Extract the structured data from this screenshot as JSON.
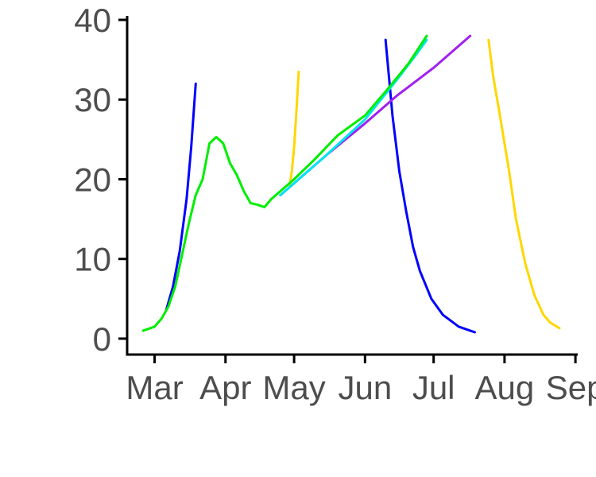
{
  "chart_data": {
    "type": "line",
    "title": "",
    "xlabel": "",
    "ylabel": "",
    "x_ticks": [
      "Mar",
      "Apr",
      "May",
      "Jun",
      "Jul",
      "Aug",
      "Sep"
    ],
    "y_ticks": [
      "0",
      "10",
      "20",
      "30",
      "40"
    ],
    "xlim": [
      "2020-02-18",
      "2020-09-02"
    ],
    "ylim": [
      -2,
      40.5
    ],
    "grid": false,
    "legend": "none",
    "series": [
      {
        "color": "#0000ff",
        "points": [
          [
            "2020-03-06",
            3.5
          ],
          [
            "2020-03-09",
            6.5
          ],
          [
            "2020-03-12",
            11
          ],
          [
            "2020-03-15",
            17.5
          ],
          [
            "2020-03-17",
            24
          ],
          [
            "2020-03-19",
            32
          ]
        ]
      },
      {
        "color": "#0000ff",
        "points": [
          [
            "2020-06-10",
            37.5
          ],
          [
            "2020-06-13",
            28
          ],
          [
            "2020-06-16",
            21
          ],
          [
            "2020-06-19",
            16
          ],
          [
            "2020-06-22",
            11.5
          ],
          [
            "2020-06-25",
            8.5
          ],
          [
            "2020-06-30",
            5
          ],
          [
            "2020-07-05",
            3
          ],
          [
            "2020-07-12",
            1.5
          ],
          [
            "2020-07-19",
            0.8
          ]
        ]
      },
      {
        "color": "#ffd700",
        "points": [
          [
            "2020-04-29",
            19
          ],
          [
            "2020-04-30",
            21
          ],
          [
            "2020-05-01",
            24
          ],
          [
            "2020-05-02",
            28.5
          ],
          [
            "2020-05-03",
            33.5
          ]
        ]
      },
      {
        "color": "#ffd700",
        "points": [
          [
            "2020-07-25",
            37.5
          ],
          [
            "2020-07-27",
            33
          ],
          [
            "2020-07-30",
            28
          ],
          [
            "2020-08-03",
            21
          ],
          [
            "2020-08-06",
            15
          ],
          [
            "2020-08-10",
            9.5
          ],
          [
            "2020-08-14",
            5.5
          ],
          [
            "2020-08-18",
            3
          ],
          [
            "2020-08-21",
            2
          ],
          [
            "2020-08-25",
            1.3
          ]
        ]
      },
      {
        "color": "#a020f0",
        "points": [
          [
            "2020-04-25",
            18
          ],
          [
            "2020-05-01",
            19.5
          ],
          [
            "2020-05-15",
            23
          ],
          [
            "2020-06-01",
            27
          ],
          [
            "2020-06-15",
            30.5
          ],
          [
            "2020-07-01",
            34
          ],
          [
            "2020-07-15",
            37.5
          ],
          [
            "2020-07-17",
            38
          ]
        ]
      },
      {
        "color": "#00e5ee",
        "points": [
          [
            "2020-04-25",
            18
          ],
          [
            "2020-05-01",
            19.5
          ],
          [
            "2020-05-15",
            23
          ],
          [
            "2020-06-01",
            27.5
          ],
          [
            "2020-06-15",
            32.5
          ],
          [
            "2020-06-23",
            35.5
          ],
          [
            "2020-06-28",
            37.5
          ]
        ]
      },
      {
        "color": "#00ee00",
        "points": [
          [
            "2020-02-25",
            1
          ],
          [
            "2020-03-01",
            1.5
          ],
          [
            "2020-03-04",
            2.5
          ],
          [
            "2020-03-07",
            4
          ],
          [
            "2020-03-10",
            6.5
          ],
          [
            "2020-03-13",
            10.5
          ],
          [
            "2020-03-16",
            14.5
          ],
          [
            "2020-03-19",
            18
          ],
          [
            "2020-03-22",
            20
          ],
          [
            "2020-03-25",
            24.5
          ],
          [
            "2020-03-28",
            25.3
          ],
          [
            "2020-03-31",
            24.5
          ],
          [
            "2020-04-03",
            22
          ],
          [
            "2020-04-06",
            20.5
          ],
          [
            "2020-04-09",
            18.5
          ],
          [
            "2020-04-12",
            17
          ],
          [
            "2020-04-15",
            16.8
          ],
          [
            "2020-04-18",
            16.5
          ],
          [
            "2020-04-21",
            17.5
          ],
          [
            "2020-04-25",
            18.5
          ],
          [
            "2020-05-01",
            20
          ],
          [
            "2020-05-10",
            22.5
          ],
          [
            "2020-05-20",
            25.5
          ],
          [
            "2020-06-01",
            28
          ],
          [
            "2020-06-10",
            31
          ],
          [
            "2020-06-20",
            34.5
          ],
          [
            "2020-06-28",
            38
          ]
        ]
      }
    ]
  }
}
